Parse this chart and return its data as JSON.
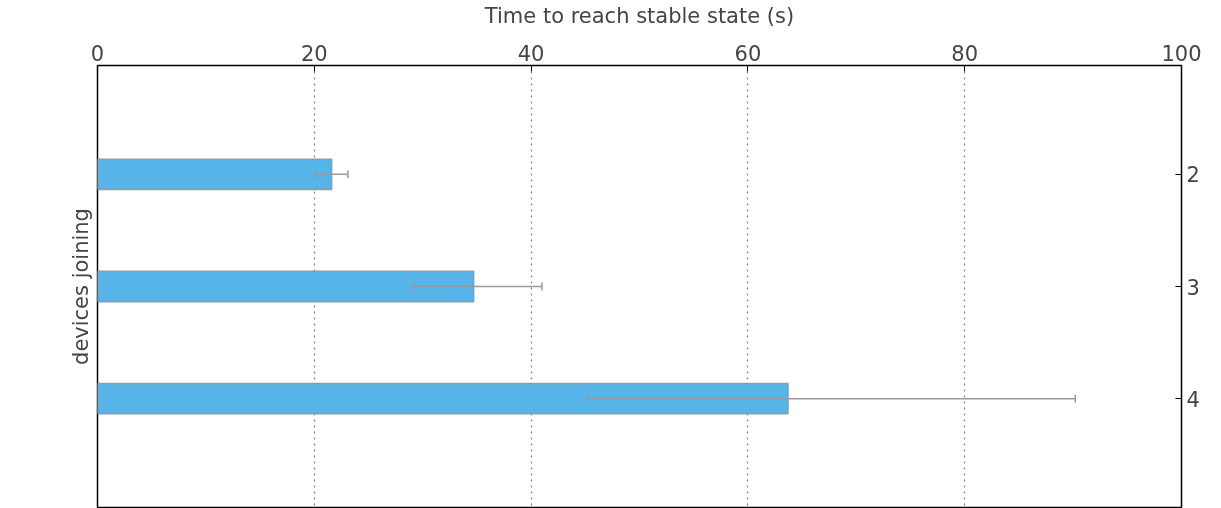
{
  "chart_data": {
    "type": "bar",
    "orientation": "horizontal",
    "xlabel": "Time to reach stable state (s)",
    "ylabel": "devices joining",
    "categories": [
      "2",
      "3",
      "4"
    ],
    "values": [
      21.6,
      34.7,
      63.7
    ],
    "errors": [
      [
        20.1,
        23.1
      ],
      [
        29.1,
        41.0
      ],
      [
        45.2,
        90.2
      ]
    ],
    "color": "#56b4e9",
    "xlim": [
      0,
      100
    ],
    "xticks": [
      0,
      20,
      40,
      60,
      80,
      100
    ],
    "grid": "x"
  }
}
